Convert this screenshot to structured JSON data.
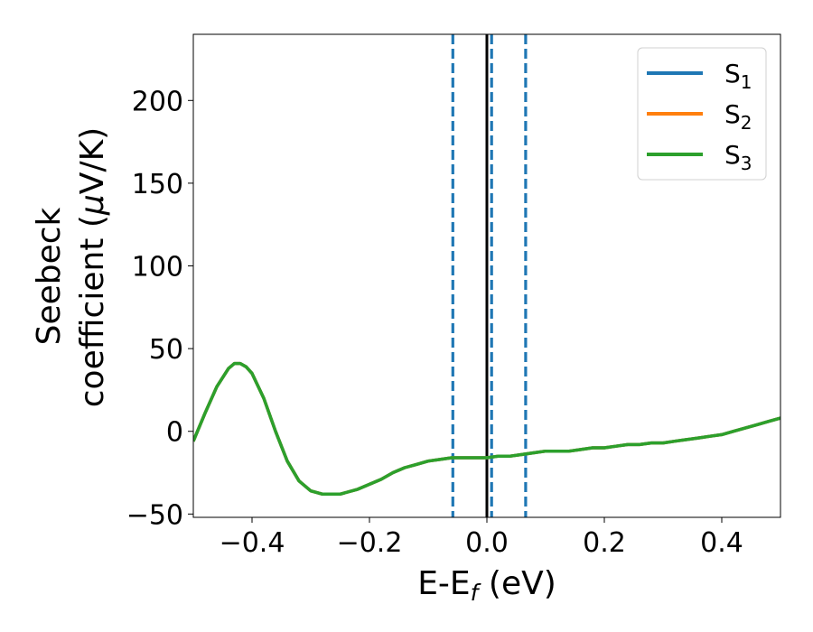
{
  "chart_data": {
    "type": "line",
    "xlabel": {
      "text": "E-E",
      "sub": "f",
      "tail": " (eV)"
    },
    "ylabel": {
      "line1": "Seebeck",
      "line2_prefix": "coefficient  (",
      "line2_mu": "μ",
      "line2_suffix": "V/K)"
    },
    "xlim": [
      -0.5,
      0.5
    ],
    "ylim": [
      -52,
      240
    ],
    "xticks": [
      {
        "value": -0.4,
        "label": "−0.4"
      },
      {
        "value": -0.2,
        "label": "−0.2"
      },
      {
        "value": 0.0,
        "label": "0.0"
      },
      {
        "value": 0.2,
        "label": "0.2"
      },
      {
        "value": 0.4,
        "label": "0.4"
      }
    ],
    "yticks": [
      {
        "value": -50,
        "label": "−50"
      },
      {
        "value": 0,
        "label": "0"
      },
      {
        "value": 50,
        "label": "50"
      },
      {
        "value": 100,
        "label": "100"
      },
      {
        "value": 150,
        "label": "150"
      },
      {
        "value": 200,
        "label": "200"
      }
    ],
    "grid": false,
    "legend_position": "top-right",
    "x": [
      -0.5,
      -0.48,
      -0.46,
      -0.44,
      -0.43,
      -0.42,
      -0.41,
      -0.4,
      -0.38,
      -0.36,
      -0.34,
      -0.32,
      -0.3,
      -0.28,
      -0.26,
      -0.25,
      -0.24,
      -0.22,
      -0.2,
      -0.18,
      -0.16,
      -0.14,
      -0.12,
      -0.1,
      -0.08,
      -0.06,
      -0.04,
      -0.02,
      0.0,
      0.02,
      0.04,
      0.06,
      0.08,
      0.1,
      0.12,
      0.14,
      0.16,
      0.18,
      0.2,
      0.22,
      0.24,
      0.26,
      0.28,
      0.3,
      0.32,
      0.34,
      0.36,
      0.38,
      0.4,
      0.42,
      0.44,
      0.46,
      0.48,
      0.5
    ],
    "series": [
      {
        "name": "S",
        "sub": "1",
        "color": "#1f77b4",
        "values": [
          -6,
          11,
          27,
          38,
          41,
          41,
          39,
          35,
          20,
          0,
          -18,
          -30,
          -36,
          -38,
          -38,
          -38,
          -37,
          -35,
          -32,
          -29,
          -25,
          -22,
          -20,
          -18,
          -17,
          -16,
          -16,
          -16,
          -16,
          -15,
          -15,
          -14,
          -13,
          -12,
          -12,
          -12,
          -11,
          -10,
          -10,
          -9,
          -8,
          -8,
          -7,
          -7,
          -6,
          -5,
          -4,
          -3,
          -2,
          0,
          2,
          4,
          6,
          8
        ]
      },
      {
        "name": "S",
        "sub": "2",
        "color": "#ff7f0e",
        "values": [
          -6,
          11,
          27,
          38,
          41,
          41,
          39,
          35,
          20,
          0,
          -18,
          -30,
          -36,
          -38,
          -38,
          -38,
          -37,
          -35,
          -32,
          -29,
          -25,
          -22,
          -20,
          -18,
          -17,
          -16,
          -16,
          -16,
          -16,
          -15,
          -15,
          -14,
          -13,
          -12,
          -12,
          -12,
          -11,
          -10,
          -10,
          -9,
          -8,
          -8,
          -7,
          -7,
          -6,
          -5,
          -4,
          -3,
          -2,
          0,
          2,
          4,
          6,
          8
        ]
      },
      {
        "name": "S",
        "sub": "3",
        "color": "#2ca02c",
        "values": [
          -6,
          11,
          27,
          38,
          41,
          41,
          39,
          35,
          20,
          0,
          -18,
          -30,
          -36,
          -38,
          -38,
          -38,
          -37,
          -35,
          -32,
          -29,
          -25,
          -22,
          -20,
          -18,
          -17,
          -16,
          -16,
          -16,
          -16,
          -15,
          -15,
          -14,
          -13,
          -12,
          -12,
          -12,
          -11,
          -10,
          -10,
          -9,
          -8,
          -8,
          -7,
          -7,
          -6,
          -5,
          -4,
          -3,
          -2,
          0,
          2,
          4,
          6,
          8
        ]
      }
    ],
    "vlines": [
      {
        "x": -0.058,
        "style": "dashed",
        "color": "#1f77b4"
      },
      {
        "x": 0.008,
        "style": "dashed",
        "color": "#1f77b4"
      },
      {
        "x": 0.066,
        "style": "dashed",
        "color": "#1f77b4"
      },
      {
        "x": 0.0,
        "style": "solid",
        "color": "#000000"
      }
    ]
  }
}
